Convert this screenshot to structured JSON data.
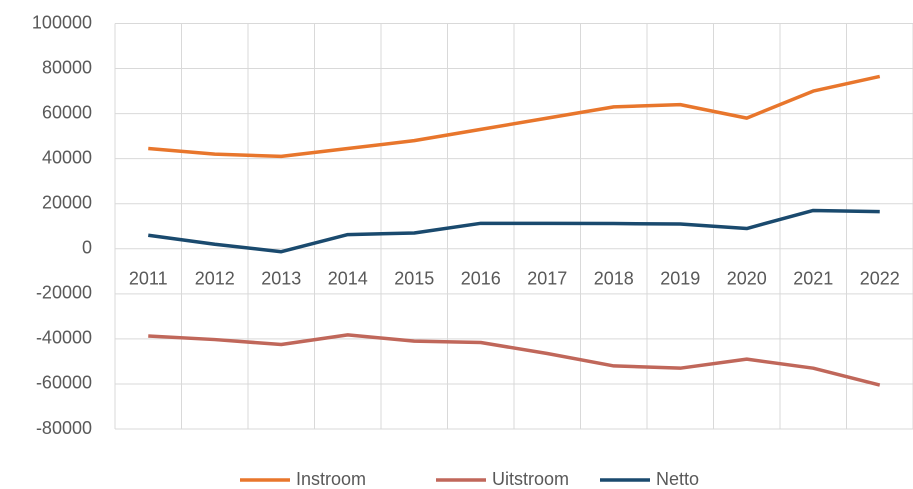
{
  "chart_data": {
    "type": "line",
    "categories": [
      "2011",
      "2012",
      "2013",
      "2014",
      "2015",
      "2016",
      "2017",
      "2018",
      "2019",
      "2020",
      "2021",
      "2022"
    ],
    "series": [
      {
        "name": "Instroom",
        "color": "#e8762c",
        "values": [
          44500,
          42000,
          41000,
          44500,
          48000,
          53000,
          58000,
          63000,
          64000,
          58000,
          70000,
          76500
        ]
      },
      {
        "name": "Uitstroom",
        "color": "#c0675a",
        "values": [
          -38700,
          -40300,
          -42500,
          -38200,
          -41000,
          -41600,
          -46500,
          -52000,
          -53000,
          -49000,
          -53000,
          -60500
        ]
      },
      {
        "name": "Netto",
        "color": "#1a4a6e",
        "values": [
          6000,
          2000,
          -1300,
          6300,
          7000,
          11300,
          11300,
          11200,
          11000,
          9000,
          17000,
          16500
        ]
      }
    ],
    "ylim": [
      -80000,
      100000
    ],
    "yticks": [
      -80000,
      -60000,
      -40000,
      -20000,
      0,
      20000,
      40000,
      60000,
      80000,
      100000
    ],
    "grid": true,
    "legend": "bottom"
  }
}
